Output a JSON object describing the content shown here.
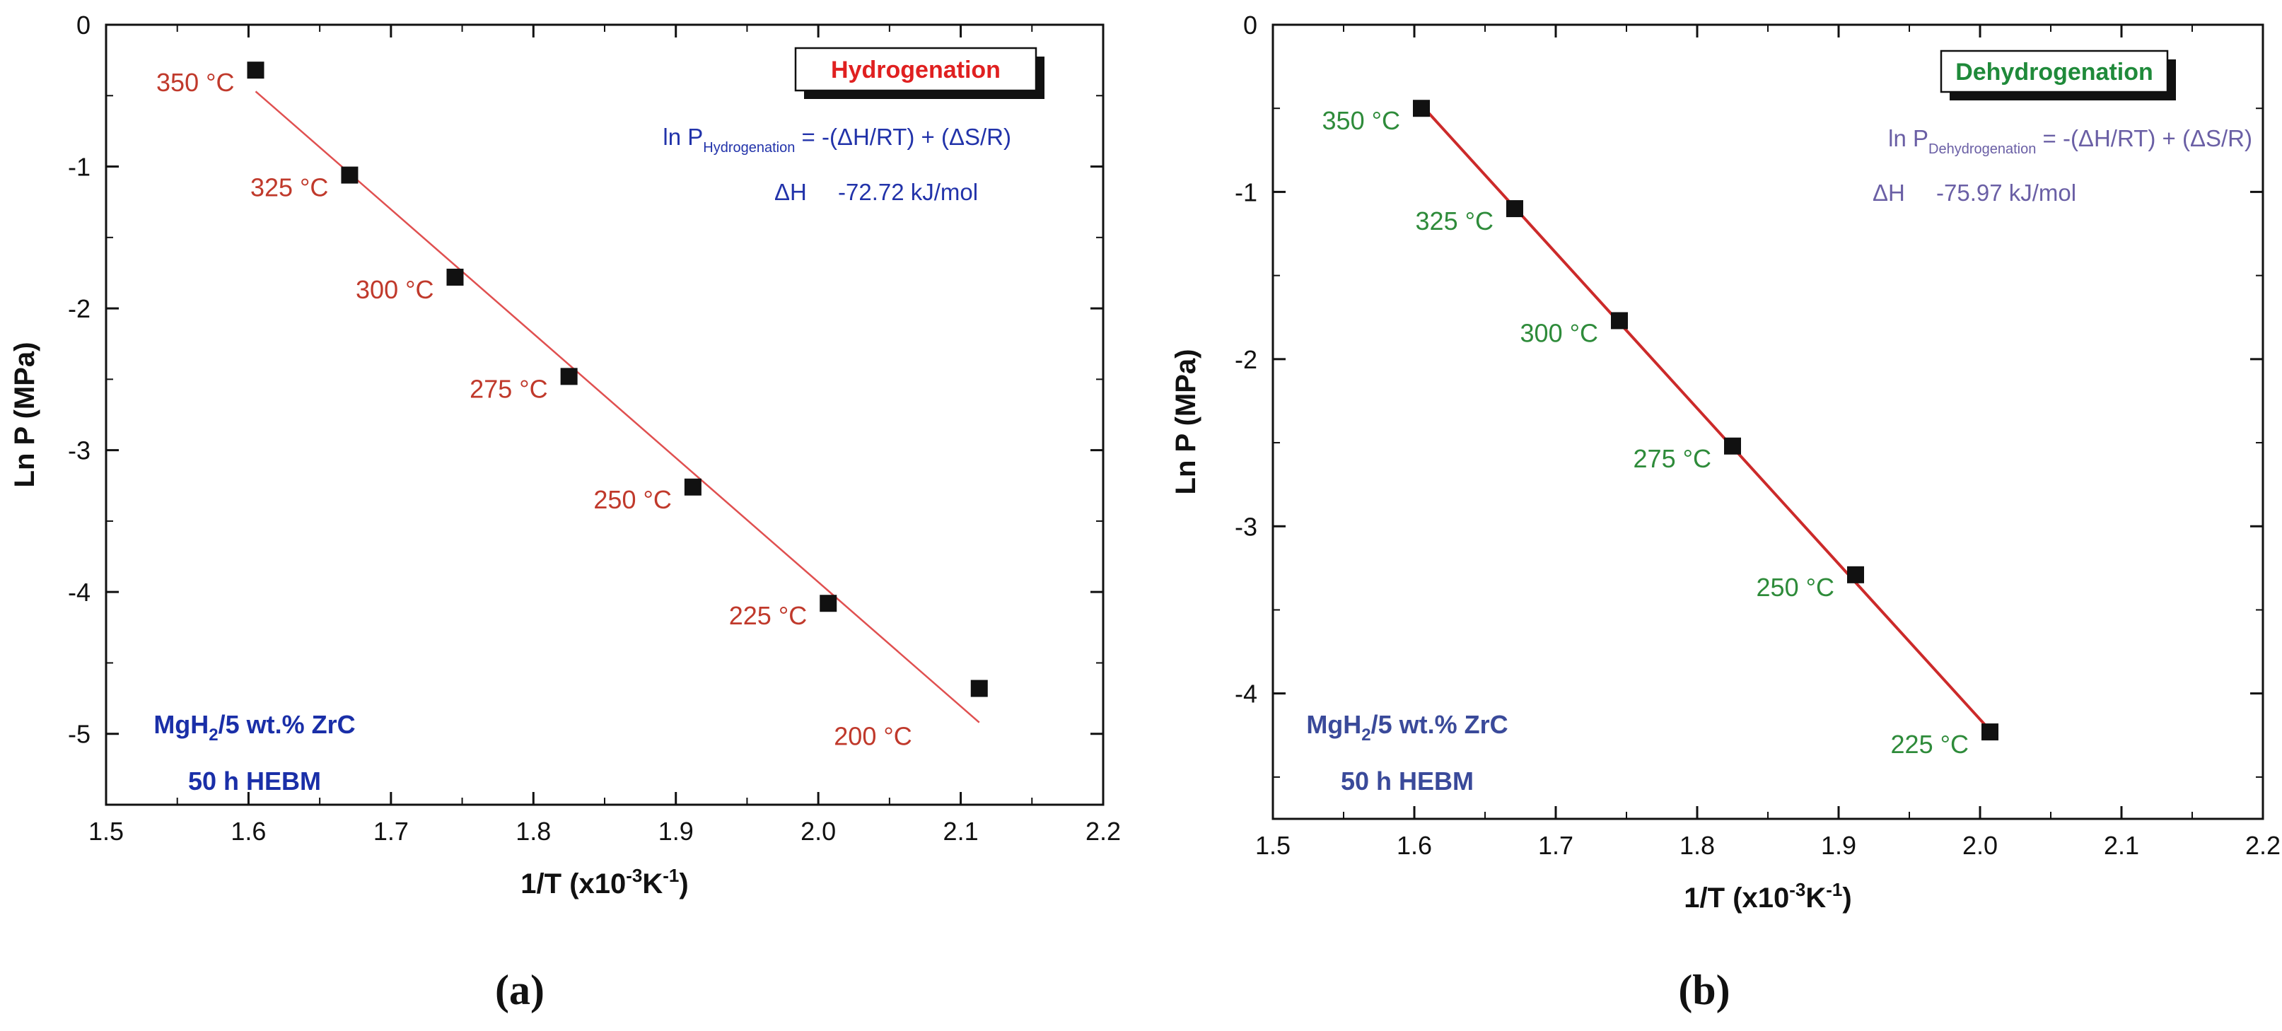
{
  "chart_data": [
    {
      "type": "scatter",
      "panel_label": "(a)",
      "badge": "Hydrogenation",
      "equation_prefix": "ln P",
      "equation_subscript": "Hydrogenation",
      "equation_rest": " = -(ΔH/RT) + (ΔS/R)",
      "dh_label": "ΔH",
      "dh_value": "-72.72 kJ/mol",
      "sample_line1": "MgH",
      "sample_sub": "2",
      "sample_line1_rest": "/5 wt.% ZrC",
      "sample_line2": "50 h HEBM",
      "xlabel_main": "1/T (x10",
      "xlabel_sup1": "-3",
      "xlabel_mid": "K",
      "xlabel_sup2": "-1",
      "xlabel_end": ")",
      "ylabel": "Ln P (MPa)",
      "xlim": [
        1.5,
        2.2
      ],
      "ylim": [
        -5.5,
        0
      ],
      "xticks": [
        "1.5",
        "1.6",
        "1.7",
        "1.8",
        "1.9",
        "2.0",
        "2.1",
        "2.2"
      ],
      "yticks": [
        "0",
        "-1",
        "-2",
        "-3",
        "-4",
        "-5"
      ],
      "points": [
        {
          "x": 1.605,
          "y": -0.32,
          "label": "350 °C"
        },
        {
          "x": 1.671,
          "y": -1.06,
          "label": "325 °C"
        },
        {
          "x": 1.745,
          "y": -1.78,
          "label": "300 °C"
        },
        {
          "x": 1.825,
          "y": -2.48,
          "label": "275 °C"
        },
        {
          "x": 1.912,
          "y": -3.26,
          "label": "250 °C"
        },
        {
          "x": 2.007,
          "y": -4.08,
          "label": "225 °C"
        },
        {
          "x": 2.113,
          "y": -4.68,
          "label": "200 °C"
        }
      ],
      "fit": {
        "x1": 1.605,
        "y1": -0.47,
        "x2": 2.113,
        "y2": -4.92
      },
      "colors": {
        "badge": "#e02020",
        "labels": "#c0392b",
        "equation": "#2233aa",
        "sample": "#1a2fa8",
        "fit": "#e05050"
      }
    },
    {
      "type": "scatter",
      "panel_label": "(b)",
      "badge": "Dehydrogenation",
      "equation_prefix": "ln P",
      "equation_subscript": "Dehydrogenation",
      "equation_rest": " = -(ΔH/RT) + (ΔS/R)",
      "dh_label": "ΔH",
      "dh_value": "-75.97 kJ/mol",
      "sample_line1": "MgH",
      "sample_sub": "2",
      "sample_line1_rest": "/5 wt.% ZrC",
      "sample_line2": "50 h HEBM",
      "xlabel_main": "1/T (x10",
      "xlabel_sup1": "-3",
      "xlabel_mid": "K",
      "xlabel_sup2": "-1",
      "xlabel_end": ")",
      "ylabel": "Ln P (MPa)",
      "xlim": [
        1.5,
        2.2
      ],
      "ylim": [
        -4.75,
        0
      ],
      "xticks": [
        "1.5",
        "1.6",
        "1.7",
        "1.8",
        "1.9",
        "2.0",
        "2.1",
        "2.2"
      ],
      "yticks": [
        "0",
        "-1",
        "-2",
        "-3",
        "-4"
      ],
      "points": [
        {
          "x": 1.605,
          "y": -0.5,
          "label": "350 °C"
        },
        {
          "x": 1.671,
          "y": -1.1,
          "label": "325 °C"
        },
        {
          "x": 1.745,
          "y": -1.77,
          "label": "300 °C"
        },
        {
          "x": 1.825,
          "y": -2.52,
          "label": "275 °C"
        },
        {
          "x": 1.912,
          "y": -3.29,
          "label": "250 °C"
        },
        {
          "x": 2.007,
          "y": -4.23,
          "label": "225 °C"
        }
      ],
      "fit": {
        "x1": 1.605,
        "y1": -0.48,
        "x2": 2.007,
        "y2": -4.22
      },
      "colors": {
        "badge": "#1f8a3a",
        "labels": "#2e8b3a",
        "equation": "#6a5fa5",
        "sample": "#3a4a9a",
        "fit": "#cc2a2a"
      }
    }
  ]
}
